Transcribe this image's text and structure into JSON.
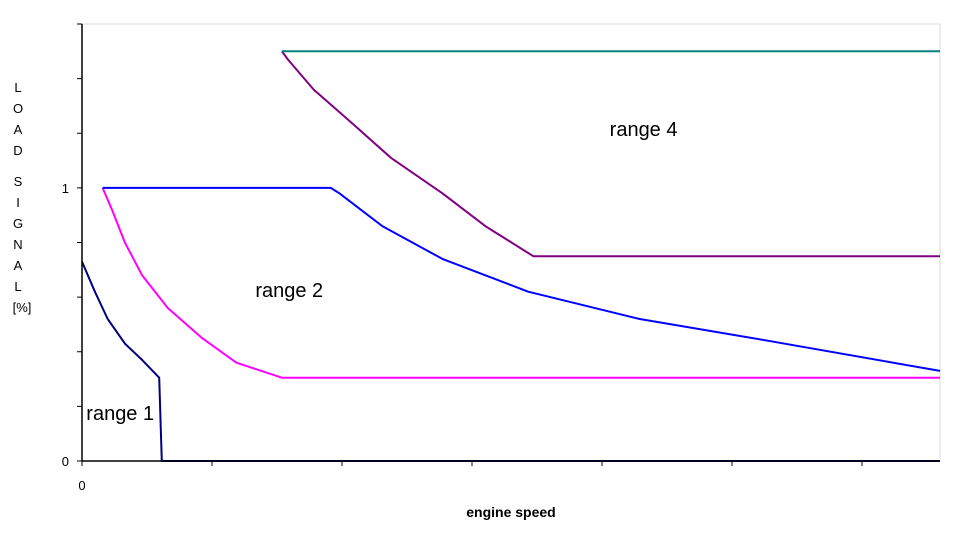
{
  "chart_data": {
    "type": "line",
    "title": "",
    "xlabel": "engine speed",
    "ylabel": "LOAD SIGNAL [%]",
    "xlim": [
      0,
      100
    ],
    "ylim": [
      0,
      1.6
    ],
    "y_tick_labels": [
      {
        "value": 0,
        "label": "0"
      },
      {
        "value": 1,
        "label": "1"
      }
    ],
    "x_tick_labels": [
      {
        "value": 0,
        "label": "0"
      }
    ],
    "grid": false,
    "legend": "none",
    "annotations": [
      {
        "text": "range 1",
        "x": 0.5,
        "y": 0.15
      },
      {
        "text": "range 2",
        "x": 20.2,
        "y": 0.6
      },
      {
        "text": "range 4",
        "x": 61.5,
        "y": 1.19
      }
    ],
    "series": [
      {
        "color": "#000080",
        "points": [
          [
            0,
            0.73
          ],
          [
            1.5,
            0.62
          ],
          [
            3,
            0.52
          ],
          [
            5,
            0.43
          ],
          [
            7,
            0.37
          ],
          [
            9,
            0.305
          ],
          [
            9.3,
            0
          ],
          [
            100,
            0
          ]
        ]
      },
      {
        "color": "#ff00ff",
        "points": [
          [
            2.4,
            1.0
          ],
          [
            3.5,
            0.92
          ],
          [
            5,
            0.8
          ],
          [
            7,
            0.68
          ],
          [
            10,
            0.56
          ],
          [
            14,
            0.45
          ],
          [
            18,
            0.36
          ],
          [
            23.3,
            0.305
          ],
          [
            100,
            0.305
          ]
        ]
      },
      {
        "color": "#0000ff",
        "points": [
          [
            2.4,
            1.0
          ],
          [
            29,
            1.0
          ],
          [
            30,
            0.98
          ],
          [
            35,
            0.86
          ],
          [
            42,
            0.74
          ],
          [
            52,
            0.62
          ],
          [
            65,
            0.52
          ],
          [
            80,
            0.44
          ],
          [
            100,
            0.33
          ]
        ]
      },
      {
        "color": "#800080",
        "points": [
          [
            23.3,
            1.5
          ],
          [
            24,
            1.47
          ],
          [
            27,
            1.36
          ],
          [
            31,
            1.25
          ],
          [
            36,
            1.11
          ],
          [
            42,
            0.98
          ],
          [
            47,
            0.86
          ],
          [
            52.6,
            0.75
          ],
          [
            100,
            0.75
          ]
        ]
      },
      {
        "color": "#008080",
        "points": [
          [
            23.3,
            1.5
          ],
          [
            100,
            1.5
          ]
        ]
      }
    ]
  }
}
